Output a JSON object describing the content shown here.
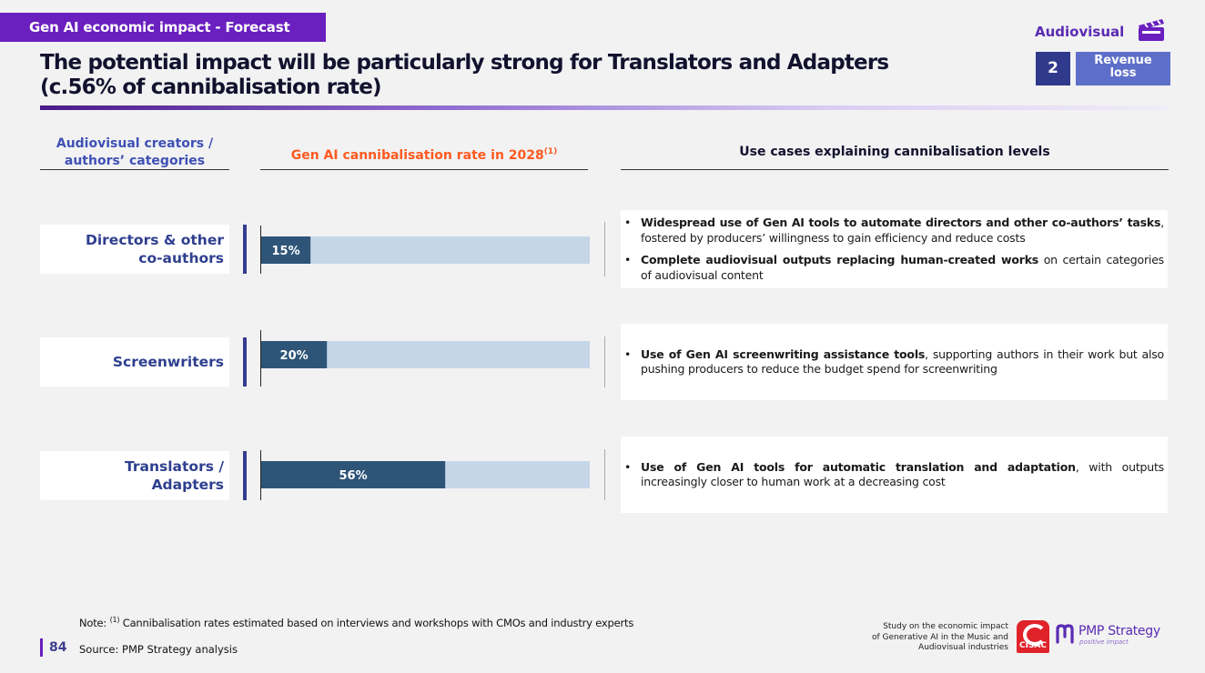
{
  "header": {
    "section": "Gen AI economic impact - Forecast",
    "title_line1": "The potential impact will be particularly strong for Translators and Adapters",
    "title_line2": "(c.56% of cannibalisation rate)",
    "sector": "Audiovisual",
    "step_number": "2",
    "step_label_line1": "Revenue",
    "step_label_line2": "loss",
    "icon": "clapperboard-icon"
  },
  "columns": {
    "categories_line1": "Audiovisual creators /",
    "categories_line2": "authors’ categories",
    "rate": "Gen AI cannibalisation rate in 2028",
    "rate_note": "(1)",
    "use_cases": "Use cases explaining cannibalisation levels"
  },
  "rows": [
    {
      "category_line1": "Directors & other",
      "category_line2": "co-authors",
      "use_cases": [
        {
          "bold": "Widespread use of Gen AI tools to automate directors and other co-authors’ tasks",
          "rest": ", fostered by producers’ willingness to gain efficiency and reduce costs"
        },
        {
          "bold": "Complete audiovisual outputs replacing human-created works",
          "rest": " on certain categories of audiovisual content"
        }
      ]
    },
    {
      "category_line1": "Screenwriters",
      "category_line2": "",
      "use_cases": [
        {
          "bold": "Use of Gen AI screenwriting assistance tools",
          "rest": ", supporting authors in their work but also pushing producers to reduce the budget spend for screenwriting"
        }
      ]
    },
    {
      "category_line1": "Translators /",
      "category_line2": "Adapters",
      "use_cases": [
        {
          "bold": "Use of Gen AI tools for automatic translation and adaptation",
          "rest": ", with outputs increasingly closer to human work at a decreasing cost"
        }
      ]
    }
  ],
  "chart_data": {
    "type": "bar",
    "orientation": "horizontal",
    "title": "Gen AI cannibalisation rate in 2028",
    "categories": [
      "Directors & other co-authors",
      "Screenwriters",
      "Translators / Adapters"
    ],
    "values": [
      15,
      20,
      56
    ],
    "labels": [
      "15%",
      "20%",
      "56%"
    ],
    "xlim": [
      0,
      100
    ],
    "unit": "%",
    "colors": {
      "bar": "#2e5578",
      "track": "#c6d6e9"
    }
  },
  "footer": {
    "note_prefix": "Note: ",
    "note_mark": "(1)",
    "note_text": " Cannibalisation rates estimated based on interviews and workshops with CMOs and industry experts",
    "page": "84",
    "source": "Source:  PMP Strategy analysis",
    "study_line1": "Study on the economic impact",
    "study_line2": "of Generative AI in the Music and",
    "study_line3": "Audiovisual industries",
    "cisac_logo": "CISAC",
    "pmp_logo": "PMP Strategy",
    "pmp_tagline": "positive impact"
  }
}
